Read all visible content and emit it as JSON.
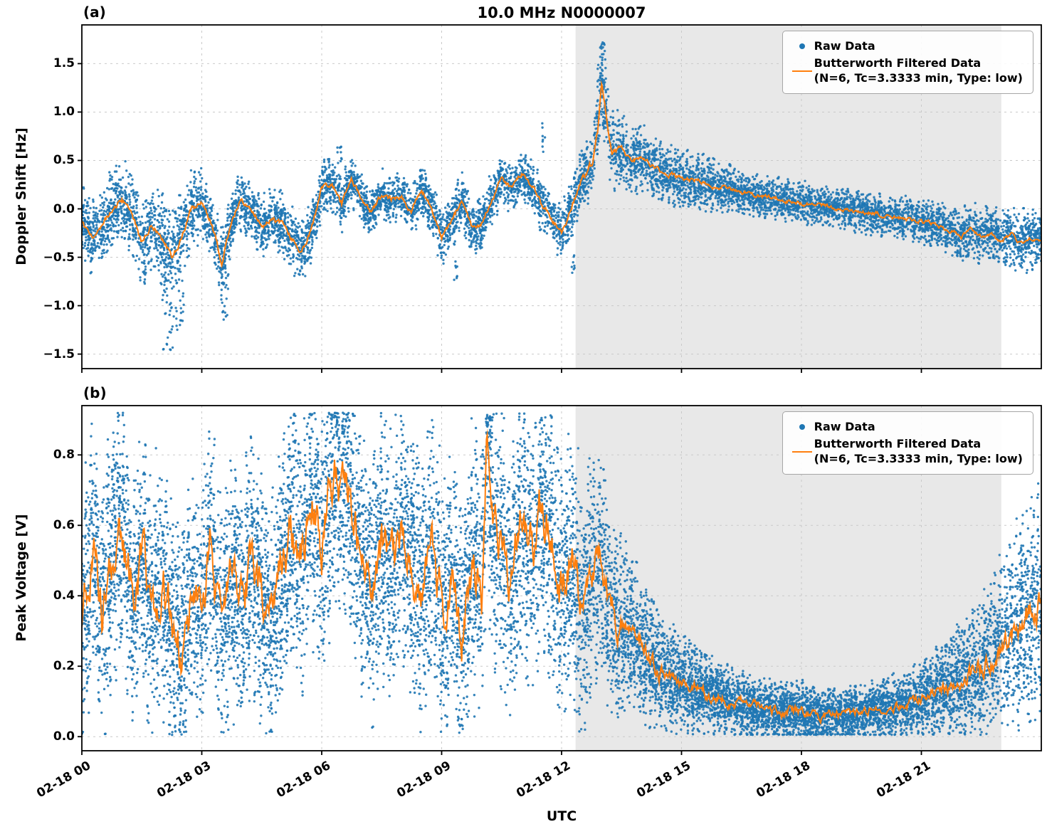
{
  "figure": {
    "xlabel": "UTC",
    "bg": "#ffffff",
    "colors": {
      "raw": "#1f77b4",
      "filtered": "#ff7f0e",
      "shade": "#e8e8e8",
      "grid": "#c9c9c9",
      "spine": "#000000"
    }
  },
  "legend": {
    "raw_label": "Raw Data",
    "filtered_label_line1": "Butterworth Filtered Data",
    "filtered_label_line2": "(N=6, Tc=3.3333 min, Type: low)"
  },
  "x_axis": {
    "lim": [
      0,
      24
    ],
    "ticks": [
      {
        "h": 0,
        "label": "02-18 00"
      },
      {
        "h": 3,
        "label": "02-18 03"
      },
      {
        "h": 6,
        "label": "02-18 06"
      },
      {
        "h": 9,
        "label": "02-18 09"
      },
      {
        "h": 12,
        "label": "02-18 12"
      },
      {
        "h": 15,
        "label": "02-18 15"
      },
      {
        "h": 18,
        "label": "02-18 18"
      },
      {
        "h": 21,
        "label": "02-18 21"
      }
    ]
  },
  "chart_data": [
    {
      "panel": "(a)",
      "type": "scatter+line",
      "title": "10.0 MHz N0000007",
      "xlabel": "UTC",
      "ylabel": "Doppler Shift [Hz]",
      "ylim": [
        -1.65,
        1.9
      ],
      "yticks": [
        -1.5,
        -1.0,
        -0.5,
        0.0,
        0.5,
        1.0,
        1.5
      ],
      "ytick_labels": [
        "−1.5",
        "−1.0",
        "−0.5",
        "0.0",
        "0.5",
        "1.0",
        "1.5"
      ],
      "grid": "dashed",
      "legend_position": "upper right",
      "shade_region": [
        12.35,
        23.0
      ],
      "series": [
        {
          "name": "Raw Data",
          "style": "scatter",
          "color": "#1f77b4"
        },
        {
          "name": "Butterworth Filtered Data (N=6, Tc=3.3333 min, Type: low)",
          "style": "line",
          "color": "#ff7f0e"
        }
      ],
      "filtered_keypoints": [
        [
          0,
          -0.15
        ],
        [
          0.25,
          -0.3
        ],
        [
          0.5,
          -0.2
        ],
        [
          0.75,
          0.0
        ],
        [
          1,
          0.1
        ],
        [
          1.25,
          -0.05
        ],
        [
          1.5,
          -0.35
        ],
        [
          1.75,
          -0.15
        ],
        [
          2,
          -0.3
        ],
        [
          2.25,
          -0.5
        ],
        [
          2.5,
          -0.3
        ],
        [
          2.75,
          0.0
        ],
        [
          3,
          0.05
        ],
        [
          3.25,
          -0.15
        ],
        [
          3.5,
          -0.55
        ],
        [
          3.75,
          -0.1
        ],
        [
          4,
          0.1
        ],
        [
          4.25,
          0.0
        ],
        [
          4.5,
          -0.2
        ],
        [
          4.75,
          -0.1
        ],
        [
          5,
          -0.15
        ],
        [
          5.25,
          -0.3
        ],
        [
          5.5,
          -0.45
        ],
        [
          5.75,
          -0.2
        ],
        [
          6,
          0.2
        ],
        [
          6.25,
          0.25
        ],
        [
          6.5,
          0.05
        ],
        [
          6.75,
          0.3
        ],
        [
          7,
          0.1
        ],
        [
          7.25,
          -0.05
        ],
        [
          7.5,
          0.15
        ],
        [
          7.75,
          0.1
        ],
        [
          8,
          0.15
        ],
        [
          8.25,
          -0.05
        ],
        [
          8.5,
          0.2
        ],
        [
          8.75,
          0.0
        ],
        [
          9,
          -0.3
        ],
        [
          9.25,
          -0.15
        ],
        [
          9.5,
          0.1
        ],
        [
          9.75,
          -0.2
        ],
        [
          10,
          -0.15
        ],
        [
          10.25,
          0.1
        ],
        [
          10.5,
          0.3
        ],
        [
          10.75,
          0.2
        ],
        [
          11,
          0.35
        ],
        [
          11.25,
          0.25
        ],
        [
          11.5,
          0.05
        ],
        [
          11.75,
          -0.1
        ],
        [
          12,
          -0.25
        ],
        [
          12.25,
          0.0
        ],
        [
          12.5,
          0.3
        ],
        [
          12.75,
          0.45
        ],
        [
          12.9,
          0.8
        ],
        [
          13,
          1.3
        ],
        [
          13.1,
          1.0
        ],
        [
          13.25,
          0.6
        ],
        [
          13.5,
          0.62
        ],
        [
          13.75,
          0.5
        ],
        [
          14,
          0.52
        ],
        [
          14.5,
          0.38
        ],
        [
          15,
          0.32
        ],
        [
          15.5,
          0.28
        ],
        [
          16,
          0.22
        ],
        [
          16.5,
          0.18
        ],
        [
          17,
          0.13
        ],
        [
          17.5,
          0.1
        ],
        [
          18,
          0.06
        ],
        [
          18.5,
          0.03
        ],
        [
          19,
          0.0
        ],
        [
          19.5,
          -0.03
        ],
        [
          20,
          -0.06
        ],
        [
          20.5,
          -0.1
        ],
        [
          21,
          -0.13
        ],
        [
          21.5,
          -0.18
        ],
        [
          22,
          -0.28
        ],
        [
          22.25,
          -0.2
        ],
        [
          22.5,
          -0.3
        ],
        [
          22.75,
          -0.25
        ],
        [
          23,
          -0.33
        ],
        [
          23.25,
          -0.27
        ],
        [
          23.5,
          -0.35
        ],
        [
          23.75,
          -0.3
        ],
        [
          24,
          -0.32
        ]
      ],
      "spread_keypoints": [
        [
          0,
          0.22
        ],
        [
          2,
          0.28
        ],
        [
          2.5,
          0.3
        ],
        [
          3,
          0.22
        ],
        [
          4,
          0.18
        ],
        [
          5,
          0.2
        ],
        [
          6,
          0.18
        ],
        [
          7,
          0.15
        ],
        [
          8,
          0.15
        ],
        [
          9,
          0.18
        ],
        [
          10,
          0.15
        ],
        [
          11,
          0.15
        ],
        [
          12,
          0.18
        ],
        [
          12.8,
          0.2
        ],
        [
          13,
          0.25
        ],
        [
          13.5,
          0.22
        ],
        [
          14,
          0.2
        ],
        [
          15,
          0.18
        ],
        [
          16,
          0.15
        ],
        [
          17,
          0.13
        ],
        [
          18,
          0.13
        ],
        [
          19,
          0.12
        ],
        [
          20,
          0.13
        ],
        [
          21,
          0.14
        ],
        [
          22,
          0.16
        ],
        [
          23,
          0.18
        ],
        [
          24,
          0.2
        ]
      ],
      "jitter_keypoints": [
        [
          0,
          0.05
        ],
        [
          12.5,
          0.05
        ],
        [
          12.9,
          0.09
        ],
        [
          13.5,
          0.05
        ],
        [
          14,
          0.04
        ],
        [
          24,
          0.035
        ]
      ],
      "outliers": [
        {
          "x": 2.15,
          "w": 0.15,
          "y0": -1.48,
          "y1": -0.7,
          "n": 30
        },
        {
          "x": 2.45,
          "w": 0.1,
          "y0": -1.25,
          "y1": -0.7,
          "n": 18
        },
        {
          "x": 3.55,
          "w": 0.12,
          "y0": -1.15,
          "y1": -0.6,
          "n": 22
        },
        {
          "x": 6.45,
          "w": 0.06,
          "y0": 0.45,
          "y1": 0.65,
          "n": 10
        },
        {
          "x": 9.35,
          "w": 0.05,
          "y0": -0.75,
          "y1": -0.5,
          "n": 8
        },
        {
          "x": 11.55,
          "w": 0.04,
          "y0": 0.55,
          "y1": 0.9,
          "n": 8
        },
        {
          "x": 12.3,
          "w": 0.05,
          "y0": -0.7,
          "y1": -0.45,
          "n": 8
        },
        {
          "x": 13.0,
          "w": 0.12,
          "y0": 1.2,
          "y1": 1.72,
          "n": 25
        }
      ],
      "n_points": 9000,
      "clip": [
        -1.6,
        1.78
      ],
      "seed": 7
    },
    {
      "panel": "(b)",
      "type": "scatter+line",
      "title": "",
      "xlabel": "UTC",
      "ylabel": "Peak Voltage [V]",
      "ylim": [
        -0.04,
        0.94
      ],
      "yticks": [
        0.0,
        0.2,
        0.4,
        0.6,
        0.8
      ],
      "ytick_labels": [
        "0.0",
        "0.2",
        "0.4",
        "0.6",
        "0.8"
      ],
      "grid": "dashed",
      "legend_position": "upper right",
      "shade_region": [
        12.35,
        23.0
      ],
      "series": [
        {
          "name": "Raw Data",
          "style": "scatter",
          "color": "#1f77b4"
        },
        {
          "name": "Butterworth Filtered Data (N=6, Tc=3.3333 min, Type: low)",
          "style": "line",
          "color": "#ff7f0e"
        }
      ],
      "filtered_keypoints": [
        [
          0,
          0.3
        ],
        [
          0.25,
          0.55
        ],
        [
          0.5,
          0.35
        ],
        [
          0.75,
          0.5
        ],
        [
          1,
          0.6
        ],
        [
          1.25,
          0.4
        ],
        [
          1.5,
          0.52
        ],
        [
          1.75,
          0.35
        ],
        [
          2,
          0.45
        ],
        [
          2.25,
          0.3
        ],
        [
          2.5,
          0.25
        ],
        [
          2.75,
          0.4
        ],
        [
          3,
          0.35
        ],
        [
          3.25,
          0.55
        ],
        [
          3.5,
          0.3
        ],
        [
          3.75,
          0.45
        ],
        [
          4,
          0.35
        ],
        [
          4.25,
          0.5
        ],
        [
          4.5,
          0.4
        ],
        [
          4.75,
          0.3
        ],
        [
          5,
          0.45
        ],
        [
          5.25,
          0.6
        ],
        [
          5.5,
          0.5
        ],
        [
          5.75,
          0.65
        ],
        [
          6,
          0.55
        ],
        [
          6.25,
          0.7
        ],
        [
          6.5,
          0.75
        ],
        [
          6.75,
          0.65
        ],
        [
          7,
          0.5
        ],
        [
          7.25,
          0.4
        ],
        [
          7.5,
          0.55
        ],
        [
          7.75,
          0.45
        ],
        [
          8,
          0.6
        ],
        [
          8.25,
          0.5
        ],
        [
          8.5,
          0.4
        ],
        [
          8.75,
          0.55
        ],
        [
          9,
          0.35
        ],
        [
          9.25,
          0.45
        ],
        [
          9.5,
          0.3
        ],
        [
          9.75,
          0.5
        ],
        [
          10,
          0.4
        ],
        [
          10.15,
          0.88
        ],
        [
          10.25,
          0.6
        ],
        [
          10.5,
          0.55
        ],
        [
          10.75,
          0.45
        ],
        [
          11,
          0.6
        ],
        [
          11.25,
          0.5
        ],
        [
          11.5,
          0.65
        ],
        [
          11.75,
          0.55
        ],
        [
          12,
          0.4
        ],
        [
          12.25,
          0.5
        ],
        [
          12.5,
          0.35
        ],
        [
          12.75,
          0.45
        ],
        [
          13,
          0.5
        ],
        [
          13.25,
          0.35
        ],
        [
          13.5,
          0.3
        ],
        [
          13.75,
          0.28
        ],
        [
          14,
          0.25
        ],
        [
          14.25,
          0.22
        ],
        [
          14.5,
          0.18
        ],
        [
          15,
          0.15
        ],
        [
          15.5,
          0.13
        ],
        [
          16,
          0.11
        ],
        [
          16.5,
          0.09
        ],
        [
          17,
          0.08
        ],
        [
          17.5,
          0.07
        ],
        [
          18,
          0.07
        ],
        [
          18.5,
          0.06
        ],
        [
          19,
          0.06
        ],
        [
          19.5,
          0.07
        ],
        [
          20,
          0.08
        ],
        [
          20.5,
          0.09
        ],
        [
          21,
          0.11
        ],
        [
          21.5,
          0.13
        ],
        [
          22,
          0.16
        ],
        [
          22.5,
          0.2
        ],
        [
          23,
          0.26
        ],
        [
          23.5,
          0.33
        ],
        [
          24,
          0.38
        ]
      ],
      "spread_keypoints": [
        [
          0,
          0.22
        ],
        [
          6,
          0.22
        ],
        [
          10,
          0.24
        ],
        [
          12.3,
          0.24
        ],
        [
          13,
          0.19
        ],
        [
          13.5,
          0.15
        ],
        [
          14,
          0.12
        ],
        [
          15,
          0.08
        ],
        [
          16,
          0.06
        ],
        [
          17,
          0.05
        ],
        [
          18,
          0.05
        ],
        [
          19,
          0.045
        ],
        [
          20,
          0.05
        ],
        [
          21,
          0.06
        ],
        [
          21.5,
          0.08
        ],
        [
          22,
          0.1
        ],
        [
          22.5,
          0.12
        ],
        [
          23,
          0.15
        ],
        [
          23.5,
          0.18
        ],
        [
          24,
          0.2
        ]
      ],
      "jitter_keypoints": [
        [
          0,
          0.12
        ],
        [
          12.5,
          0.12
        ],
        [
          13.5,
          0.08
        ],
        [
          14,
          0.05
        ],
        [
          15,
          0.03
        ],
        [
          20,
          0.02
        ],
        [
          21.5,
          0.03
        ],
        [
          22.5,
          0.05
        ],
        [
          24,
          0.07
        ]
      ],
      "outliers": [
        {
          "x": 10.2,
          "w": 0.06,
          "y0": 0.82,
          "y1": 0.92,
          "n": 12
        }
      ],
      "n_points": 14000,
      "clip": [
        0.005,
        0.92
      ],
      "seed": 21
    }
  ]
}
